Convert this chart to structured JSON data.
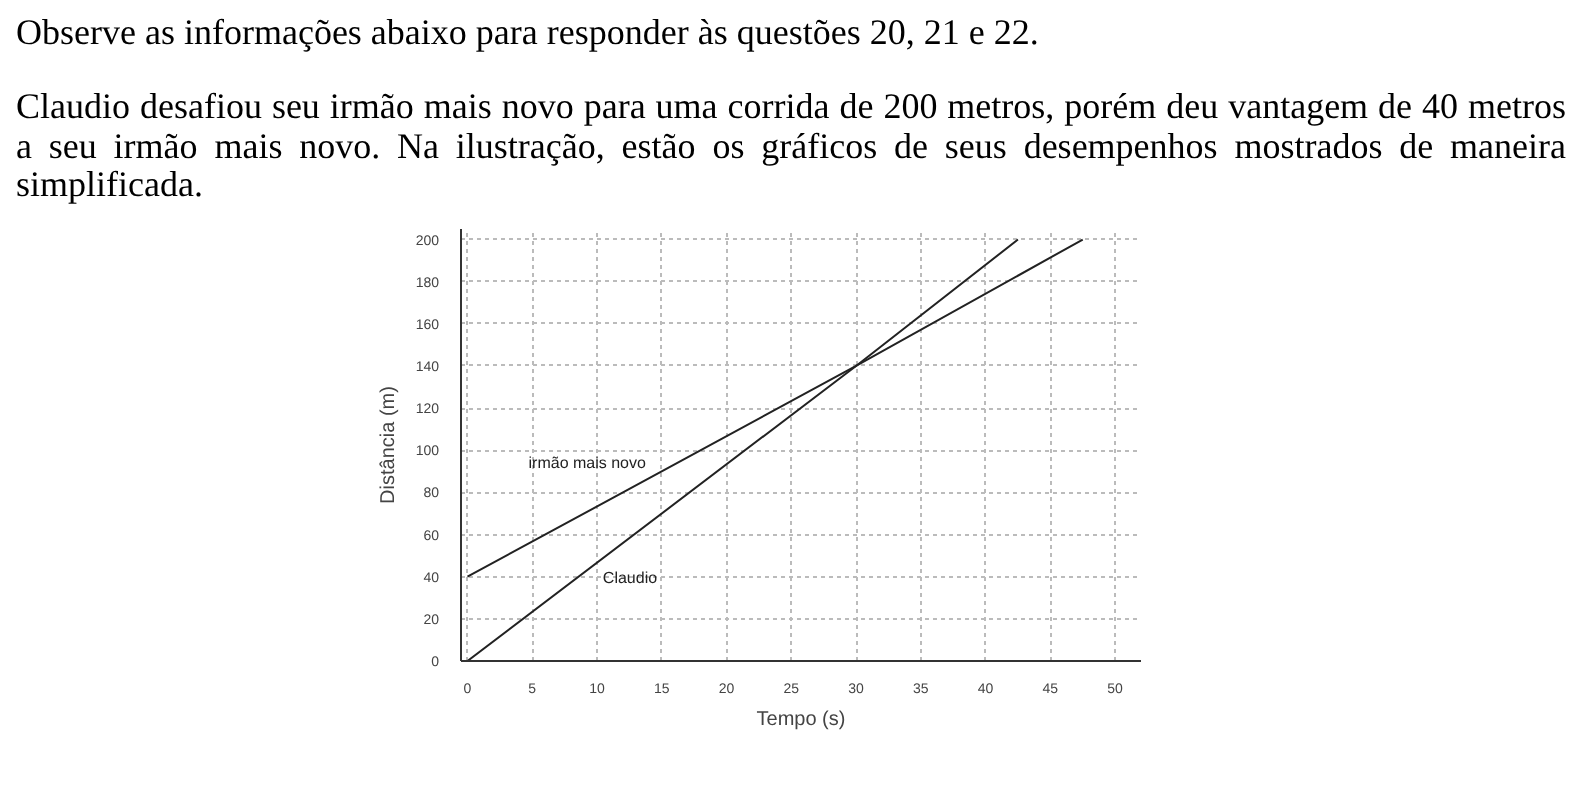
{
  "chart_data": {
    "type": "line",
    "title": "Observe as informações abaixo para responder às questões 20, 21 e 22.",
    "subtitle": "Claudio desafiou seu irmão mais novo para uma corrida de 200 metros, porém deu vantagem de 40 metros a seu irmão mais novo. Na ilustração, estão os gráficos de seus desempenhos mostrados de maneira simplificada.",
    "xlabel": "Tempo (s)",
    "ylabel": "Distância (m)",
    "series": [
      {
        "name": "irmão mais novo",
        "color": "#222222",
        "x": [
          0,
          30,
          47.5
        ],
        "values": [
          40,
          140,
          200
        ]
      },
      {
        "name": "Claudio",
        "color": "#222222",
        "x": [
          0,
          30,
          42.5
        ],
        "values": [
          0,
          140,
          200
        ]
      }
    ],
    "xlim": [
      -0.5,
      52
    ],
    "ylim": [
      0,
      205
    ],
    "xticks": [
      0,
      5,
      10,
      15,
      20,
      25,
      30,
      35,
      40,
      45,
      50
    ],
    "yticks": [
      0,
      20,
      40,
      60,
      80,
      100,
      120,
      140,
      160,
      180,
      200
    ],
    "grid": true,
    "marker": "none",
    "line_style": "solid"
  }
}
